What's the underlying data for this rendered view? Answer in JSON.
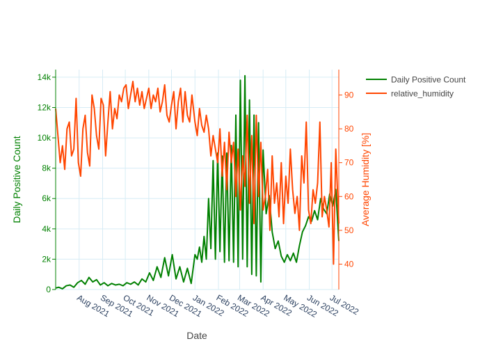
{
  "colors": {
    "positive": "#008000",
    "humidity": "#FF4500",
    "grid": "#d6ecf5",
    "x_tick_text": "#2a3f5f",
    "title_text": "#444444"
  },
  "chart_data": {
    "type": "line",
    "xlabel": "Date",
    "x_ticks": [
      "Aug 2021",
      "Sep 2021",
      "Oct 2021",
      "Nov 2021",
      "Dec 2021",
      "Jan 2022",
      "Feb 2022",
      "Mar 2022",
      "Apr 2022",
      "May 2022",
      "Jun 2022",
      "Jul 2022"
    ],
    "x_range": [
      "2021-07-01",
      "2022-07-10"
    ],
    "grid": true,
    "legend_position": "top-right",
    "y_left": {
      "label": "Daily Positive Count",
      "range": [
        0,
        14500
      ],
      "ticks": [
        0,
        2000,
        4000,
        6000,
        8000,
        10000,
        12000,
        14000
      ],
      "tick_labels": [
        "0",
        "2k",
        "4k",
        "6k",
        "8k",
        "10k",
        "12k",
        "14k"
      ]
    },
    "y_right": {
      "label": "Average Humidity [%]",
      "range": [
        32.5,
        97.5
      ],
      "ticks": [
        40,
        50,
        60,
        70,
        80,
        90
      ],
      "tick_labels": [
        "40",
        "50",
        "60",
        "70",
        "80",
        "90"
      ]
    },
    "series": [
      {
        "name": "Daily Positive Count",
        "axis": "left",
        "x": [
          "2021-07-01",
          "2021-07-05",
          "2021-07-10",
          "2021-07-15",
          "2021-07-20",
          "2021-07-25",
          "2021-07-30",
          "2021-08-04",
          "2021-08-09",
          "2021-08-14",
          "2021-08-19",
          "2021-08-24",
          "2021-08-29",
          "2021-09-03",
          "2021-09-08",
          "2021-09-13",
          "2021-09-18",
          "2021-09-23",
          "2021-09-28",
          "2021-10-03",
          "2021-10-08",
          "2021-10-13",
          "2021-10-18",
          "2021-10-23",
          "2021-10-28",
          "2021-11-02",
          "2021-11-07",
          "2021-11-12",
          "2021-11-17",
          "2021-11-22",
          "2021-11-27",
          "2021-12-02",
          "2021-12-07",
          "2021-12-12",
          "2021-12-17",
          "2021-12-22",
          "2021-12-27",
          "2022-01-01",
          "2022-01-04",
          "2022-01-07",
          "2022-01-10",
          "2022-01-13",
          "2022-01-16",
          "2022-01-19",
          "2022-01-22",
          "2022-01-25",
          "2022-01-28",
          "2022-01-31",
          "2022-02-03",
          "2022-02-06",
          "2022-02-09",
          "2022-02-12",
          "2022-02-15",
          "2022-02-18",
          "2022-02-21",
          "2022-02-24",
          "2022-02-27",
          "2022-03-02",
          "2022-03-05",
          "2022-03-08",
          "2022-03-11",
          "2022-03-14",
          "2022-03-17",
          "2022-03-20",
          "2022-03-23",
          "2022-03-26",
          "2022-03-29",
          "2022-04-01",
          "2022-04-05",
          "2022-04-09",
          "2022-04-13",
          "2022-04-17",
          "2022-04-21",
          "2022-04-25",
          "2022-04-29",
          "2022-05-03",
          "2022-05-07",
          "2022-05-11",
          "2022-05-15",
          "2022-05-19",
          "2022-05-23",
          "2022-05-27",
          "2022-05-31",
          "2022-06-04",
          "2022-06-08",
          "2022-06-12",
          "2022-06-16",
          "2022-06-20",
          "2022-06-24",
          "2022-06-28",
          "2022-07-02",
          "2022-07-06",
          "2022-07-10"
        ],
        "values": [
          100,
          150,
          50,
          250,
          300,
          150,
          450,
          600,
          350,
          800,
          500,
          650,
          300,
          450,
          250,
          400,
          300,
          350,
          250,
          450,
          350,
          500,
          300,
          700,
          500,
          1100,
          600,
          1500,
          800,
          2100,
          900,
          2300,
          700,
          1500,
          500,
          1400,
          400,
          2300,
          2000,
          2800,
          1800,
          3500,
          2000,
          6000,
          2700,
          8500,
          2000,
          9000,
          2500,
          8800,
          1800,
          9000,
          1900,
          9500,
          1800,
          11500,
          1500,
          13800,
          2000,
          14100,
          1500,
          12500,
          1000,
          11500,
          900,
          11000,
          500,
          9200,
          5000,
          6200,
          3800,
          2700,
          3200,
          2200,
          1800,
          2300,
          1900,
          2400,
          1800,
          2900,
          3800,
          4200,
          4800,
          4500,
          5200,
          4600,
          6000,
          5300,
          5000,
          6300,
          5500,
          6600,
          3200
        ]
      },
      {
        "name": "relative_humidity",
        "axis": "right",
        "x": [
          "2021-07-01",
          "2021-07-04",
          "2021-07-07",
          "2021-07-10",
          "2021-07-13",
          "2021-07-16",
          "2021-07-19",
          "2021-07-22",
          "2021-07-25",
          "2021-07-28",
          "2021-07-31",
          "2021-08-03",
          "2021-08-06",
          "2021-08-09",
          "2021-08-12",
          "2021-08-15",
          "2021-08-18",
          "2021-08-21",
          "2021-08-24",
          "2021-08-27",
          "2021-08-30",
          "2021-09-02",
          "2021-09-05",
          "2021-09-08",
          "2021-09-11",
          "2021-09-14",
          "2021-09-17",
          "2021-09-20",
          "2021-09-23",
          "2021-09-26",
          "2021-09-29",
          "2021-10-02",
          "2021-10-05",
          "2021-10-08",
          "2021-10-11",
          "2021-10-14",
          "2021-10-17",
          "2021-10-20",
          "2021-10-23",
          "2021-10-26",
          "2021-10-29",
          "2021-11-01",
          "2021-11-04",
          "2021-11-07",
          "2021-11-10",
          "2021-11-13",
          "2021-11-16",
          "2021-11-19",
          "2021-11-22",
          "2021-11-25",
          "2021-11-28",
          "2021-12-01",
          "2021-12-04",
          "2021-12-07",
          "2021-12-10",
          "2021-12-13",
          "2021-12-16",
          "2021-12-19",
          "2021-12-22",
          "2021-12-25",
          "2021-12-28",
          "2022-01-01",
          "2022-01-04",
          "2022-01-07",
          "2022-01-10",
          "2022-01-13",
          "2022-01-16",
          "2022-01-19",
          "2022-01-22",
          "2022-01-25",
          "2022-01-28",
          "2022-01-31",
          "2022-02-03",
          "2022-02-06",
          "2022-02-09",
          "2022-02-12",
          "2022-02-15",
          "2022-02-18",
          "2022-02-21",
          "2022-02-24",
          "2022-02-27",
          "2022-03-02",
          "2022-03-05",
          "2022-03-08",
          "2022-03-11",
          "2022-03-14",
          "2022-03-17",
          "2022-03-20",
          "2022-03-23",
          "2022-03-26",
          "2022-03-29",
          "2022-04-01",
          "2022-04-04",
          "2022-04-07",
          "2022-04-10",
          "2022-04-13",
          "2022-04-16",
          "2022-04-19",
          "2022-04-22",
          "2022-04-25",
          "2022-04-28",
          "2022-05-01",
          "2022-05-04",
          "2022-05-07",
          "2022-05-10",
          "2022-05-13",
          "2022-05-16",
          "2022-05-19",
          "2022-05-22",
          "2022-05-25",
          "2022-05-28",
          "2022-05-31",
          "2022-06-03",
          "2022-06-06",
          "2022-06-09",
          "2022-06-12",
          "2022-06-15",
          "2022-06-18",
          "2022-06-21",
          "2022-06-24",
          "2022-06-27",
          "2022-06-30",
          "2022-07-03",
          "2022-07-06",
          "2022-07-10"
        ],
        "values": [
          86,
          78,
          70,
          75,
          68,
          80,
          82,
          72,
          74,
          89,
          70,
          66,
          80,
          84,
          73,
          69,
          90,
          86,
          78,
          74,
          89,
          87,
          72,
          82,
          91,
          80,
          86,
          83,
          90,
          88,
          92,
          93,
          86,
          90,
          94,
          88,
          92,
          87,
          91,
          86,
          89,
          92,
          86,
          90,
          88,
          92,
          85,
          88,
          93,
          84,
          82,
          87,
          91,
          80,
          88,
          92,
          82,
          91,
          84,
          82,
          90,
          82,
          78,
          86,
          81,
          79,
          84,
          80,
          72,
          78,
          74,
          70,
          80,
          66,
          76,
          62,
          79,
          70,
          76,
          60,
          74,
          56,
          72,
          63,
          84,
          58,
          78,
          52,
          84,
          60,
          76,
          56,
          60,
          68,
          50,
          72,
          58,
          64,
          54,
          70,
          52,
          66,
          58,
          74,
          62,
          55,
          60,
          50,
          72,
          64,
          82,
          56,
          52,
          62,
          58,
          64,
          82,
          54,
          60,
          56,
          51,
          70,
          40,
          74,
          52
        ]
      }
    ]
  }
}
